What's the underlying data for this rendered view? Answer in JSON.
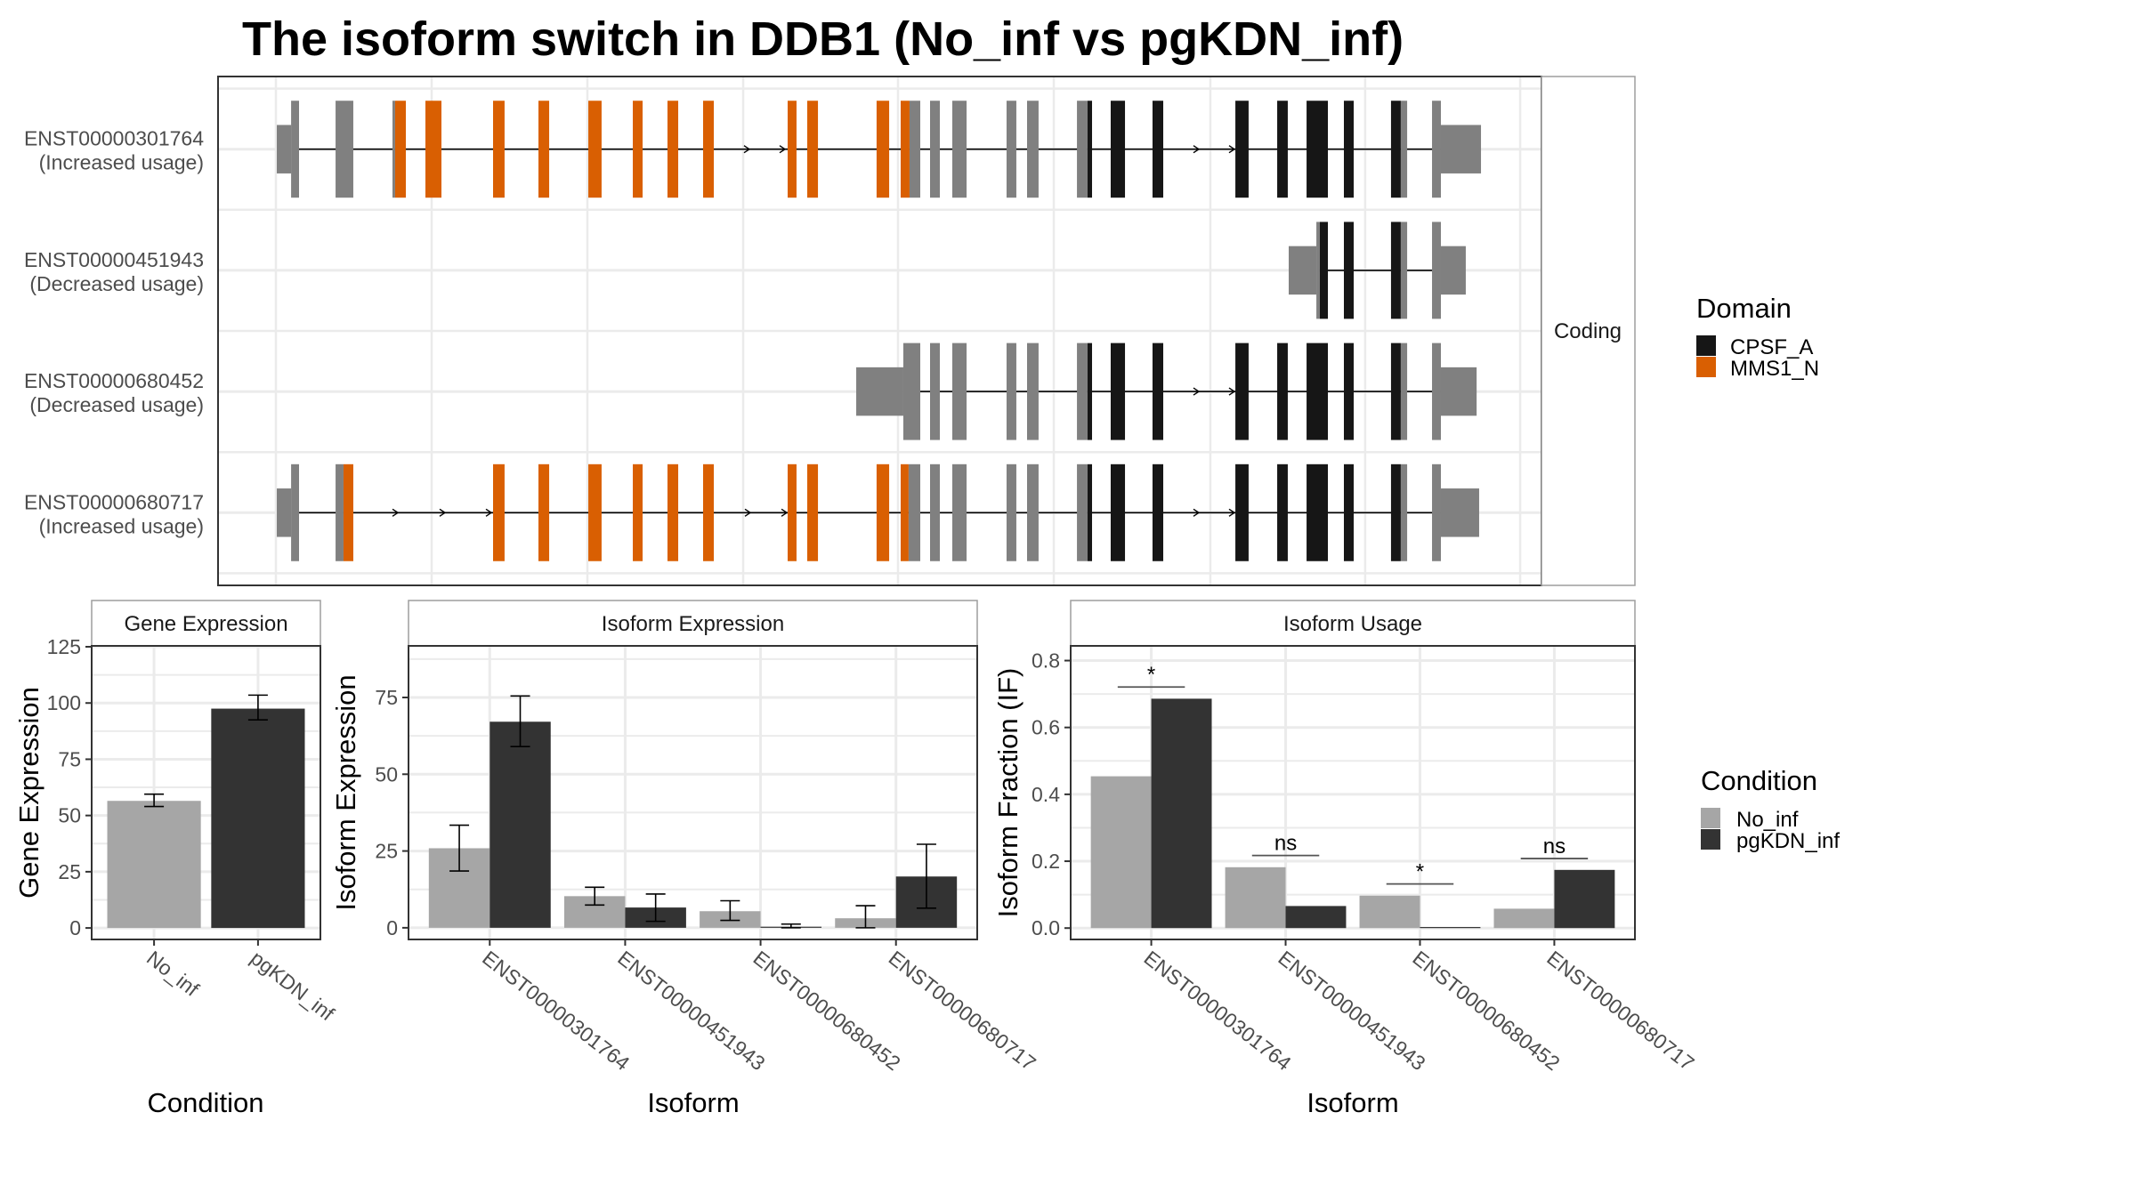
{
  "title": "The isoform switch in DDB1 (No_inf vs pgKDN_inf)",
  "colors": {
    "cpsf_a": "#161616",
    "mms1_n": "#D95F02",
    "non_domain_exon": "#808080",
    "no_inf": "#A6A6A6",
    "pgkdn_inf": "#333333",
    "gridline": "#EBEBEB",
    "panel_border": "#333333",
    "strip_border": "#9E9E9E"
  },
  "chart_data": [
    {
      "type": "gene-structure",
      "title": "The isoform switch in DDB1 (No_inf vs pgKDN_inf)",
      "facet_label": "Coding",
      "x_unit": "relative genomic position (0-1000)",
      "xlim": [
        0,
        1000
      ],
      "x_gridlines": [
        43.7,
        161.4,
        279.1,
        396.8,
        513.8,
        631.5,
        749.8,
        866.8,
        983.9
      ],
      "transcripts": [
        {
          "id": "ENST00000301764",
          "usage": "(Increased usage)",
          "intron": [
            61.2,
            924.0
          ],
          "arrows": [
            400.8,
            427.7,
            740.4,
            767.3
          ],
          "utrs": [
            [
              44.4,
              55.2
            ],
            [
              924.0,
              954.3
            ]
          ],
          "exons": [
            [
              55.2,
              61.2,
              "none"
            ],
            [
              88.8,
              102.2,
              "none"
            ],
            [
              131.8,
              133.8,
              "none"
            ],
            [
              133.8,
              141.9,
              "MMS1_N"
            ],
            [
              156.7,
              168.8,
              "MMS1_N"
            ],
            [
              207.8,
              216.5,
              "MMS1_N"
            ],
            [
              242.1,
              250.2,
              "MMS1_N"
            ],
            [
              279.8,
              289.8,
              "MMS1_N"
            ],
            [
              313.4,
              320.8,
              "MMS1_N"
            ],
            [
              339.6,
              347.7,
              "MMS1_N"
            ],
            [
              366.5,
              374.6,
              "MMS1_N"
            ],
            [
              430.4,
              437.1,
              "MMS1_N"
            ],
            [
              445.2,
              453.3,
              "MMS1_N"
            ],
            [
              497.6,
              507.1,
              "MMS1_N"
            ],
            [
              515.8,
              522.5,
              "MMS1_N"
            ],
            [
              522.5,
              530.6,
              "none"
            ],
            [
              538.0,
              545.4,
              "none"
            ],
            [
              554.8,
              565.6,
              "none"
            ],
            [
              595.8,
              603.2,
              "none"
            ],
            [
              611.3,
              620.0,
              "none"
            ],
            [
              649.0,
              657.0,
              "none"
            ],
            [
              657.0,
              660.4,
              "CPSF_A"
            ],
            [
              674.5,
              685.3,
              "CPSF_A"
            ],
            [
              706.1,
              714.2,
              "CPSF_A"
            ],
            [
              768.7,
              778.7,
              "CPSF_A"
            ],
            [
              800.3,
              808.3,
              "CPSF_A"
            ],
            [
              822.5,
              838.6,
              "CPSF_A"
            ],
            [
              850.7,
              858.1,
              "CPSF_A"
            ],
            [
              886.3,
              893.7,
              "CPSF_A"
            ],
            [
              893.7,
              898.5,
              "none"
            ],
            [
              917.3,
              924.0,
              "none"
            ]
          ]
        },
        {
          "id": "ENST00000451943",
          "usage": "(Decreased usage)",
          "intron": [
            832.5,
            917.3
          ],
          "arrows": [],
          "utrs": [
            [
              809.0,
              829.9
            ],
            [
              924.0,
              942.8
            ]
          ],
          "exons": [
            [
              829.9,
              832.5,
              "none"
            ],
            [
              832.5,
              838.6,
              "CPSF_A"
            ],
            [
              850.7,
              858.1,
              "CPSF_A"
            ],
            [
              886.3,
              893.7,
              "CPSF_A"
            ],
            [
              893.7,
              898.5,
              "none"
            ],
            [
              917.3,
              924.0,
              "none"
            ]
          ]
        },
        {
          "id": "ENST00000680452",
          "usage": "(Decreased usage)",
          "intron": [
            530.6,
            924.0
          ],
          "arrows": [
            740.4,
            767.3
          ],
          "utrs": [
            [
              482.2,
              517.8
            ],
            [
              924.0,
              951.0
            ]
          ],
          "exons": [
            [
              517.8,
              530.6,
              "none"
            ],
            [
              538.0,
              545.4,
              "none"
            ],
            [
              554.8,
              565.6,
              "none"
            ],
            [
              595.8,
              603.2,
              "none"
            ],
            [
              611.3,
              620.0,
              "none"
            ],
            [
              649.0,
              657.0,
              "none"
            ],
            [
              657.0,
              660.4,
              "CPSF_A"
            ],
            [
              674.5,
              685.3,
              "CPSF_A"
            ],
            [
              706.1,
              714.2,
              "CPSF_A"
            ],
            [
              768.7,
              778.7,
              "CPSF_A"
            ],
            [
              800.3,
              808.3,
              "CPSF_A"
            ],
            [
              822.5,
              838.6,
              "CPSF_A"
            ],
            [
              850.7,
              858.1,
              "CPSF_A"
            ],
            [
              886.3,
              893.7,
              "CPSF_A"
            ],
            [
              893.7,
              898.5,
              "none"
            ],
            [
              917.3,
              924.0,
              "none"
            ]
          ]
        },
        {
          "id": "ENST00000680717",
          "usage": "(Increased usage)",
          "intron": [
            61.2,
            924.0
          ],
          "arrows": [
            135.2,
            170.8,
            205.8,
            401.5,
            429.1,
            740.4,
            767.3
          ],
          "utrs": [
            [
              44.4,
              55.2
            ],
            [
              924.0,
              952.9
            ]
          ],
          "exons": [
            [
              55.2,
              61.2,
              "none"
            ],
            [
              88.8,
              94.8,
              "none"
            ],
            [
              94.8,
              102.2,
              "MMS1_N"
            ],
            [
              207.8,
              216.5,
              "MMS1_N"
            ],
            [
              242.1,
              250.2,
              "MMS1_N"
            ],
            [
              279.8,
              289.8,
              "MMS1_N"
            ],
            [
              313.4,
              320.8,
              "MMS1_N"
            ],
            [
              339.6,
              347.7,
              "MMS1_N"
            ],
            [
              366.5,
              374.6,
              "MMS1_N"
            ],
            [
              430.4,
              437.1,
              "MMS1_N"
            ],
            [
              445.2,
              453.3,
              "MMS1_N"
            ],
            [
              497.6,
              507.1,
              "MMS1_N"
            ],
            [
              515.8,
              521.8,
              "MMS1_N"
            ],
            [
              521.8,
              530.6,
              "none"
            ],
            [
              538.0,
              545.4,
              "none"
            ],
            [
              554.8,
              565.6,
              "none"
            ],
            [
              595.8,
              603.2,
              "none"
            ],
            [
              611.3,
              620.0,
              "none"
            ],
            [
              649.0,
              657.0,
              "none"
            ],
            [
              657.0,
              660.4,
              "CPSF_A"
            ],
            [
              674.5,
              685.3,
              "CPSF_A"
            ],
            [
              706.1,
              714.2,
              "CPSF_A"
            ],
            [
              768.7,
              778.7,
              "CPSF_A"
            ],
            [
              800.3,
              808.3,
              "CPSF_A"
            ],
            [
              822.5,
              838.6,
              "CPSF_A"
            ],
            [
              850.7,
              858.1,
              "CPSF_A"
            ],
            [
              886.3,
              893.7,
              "CPSF_A"
            ],
            [
              893.7,
              898.5,
              "none"
            ],
            [
              917.3,
              924.0,
              "none"
            ]
          ]
        }
      ],
      "legend": {
        "title": "Domain",
        "placement": "right",
        "entries": [
          {
            "label": "CPSF_A",
            "key": "CPSF_A"
          },
          {
            "label": "MMS1_N",
            "key": "MMS1_N"
          }
        ]
      }
    },
    {
      "type": "bar",
      "title": "Gene Expression",
      "xlabel": "Condition",
      "ylabel": "Gene Expression",
      "ylim": [
        -5.1,
        125.4
      ],
      "yticks": [
        0,
        25,
        50,
        75,
        100,
        125
      ],
      "categories": [
        "No_inf",
        "pgKDN_inf"
      ],
      "values": [
        56.5,
        97.5
      ],
      "error_low": [
        54.0,
        92.5
      ],
      "error_high": [
        59.5,
        103.5
      ]
    },
    {
      "type": "bar",
      "title": "Isoform Expression",
      "xlabel": "Isoform",
      "ylabel": "Isoform Expression",
      "ylim": [
        -3.8,
        91.8
      ],
      "yticks": [
        0,
        25,
        50,
        75
      ],
      "categories": [
        "ENST00000301764",
        "ENST00000451943",
        "ENST00000680452",
        "ENST00000680717"
      ],
      "series": [
        {
          "name": "No_inf",
          "values": [
            25.9,
            10.3,
            5.4,
            3.1
          ],
          "error_low": [
            18.5,
            7.4,
            2.4,
            0.0
          ],
          "error_high": [
            33.4,
            13.2,
            8.8,
            7.2
          ]
        },
        {
          "name": "pgKDN_inf",
          "values": [
            67.1,
            6.6,
            0.2,
            16.7
          ],
          "error_low": [
            59.0,
            2.1,
            0.0,
            6.4
          ],
          "error_high": [
            75.5,
            11.0,
            1.2,
            27.2
          ]
        }
      ]
    },
    {
      "type": "bar",
      "title": "Isoform Usage",
      "xlabel": "Isoform",
      "ylabel": "Isoform Fraction (IF)",
      "ylim": [
        -0.034,
        0.844
      ],
      "yticks": [
        0.0,
        0.2,
        0.4,
        0.6,
        0.8
      ],
      "ytick_labels": [
        "0.0",
        "0.2",
        "0.4",
        "0.6",
        "0.8"
      ],
      "categories": [
        "ENST00000301764",
        "ENST00000451943",
        "ENST00000680452",
        "ENST00000680717"
      ],
      "series": [
        {
          "name": "No_inf",
          "values": [
            0.454,
            0.182,
            0.097,
            0.058
          ]
        },
        {
          "name": "pgKDN_inf",
          "values": [
            0.686,
            0.066,
            0.001,
            0.174
          ]
        }
      ],
      "significance": [
        {
          "label": "*",
          "y": 0.721
        },
        {
          "label": "ns",
          "y": 0.217
        },
        {
          "label": "*",
          "y": 0.132
        },
        {
          "label": "ns",
          "y": 0.208
        }
      ]
    }
  ],
  "condition_legend": {
    "title": "Condition",
    "placement": "right",
    "entries": [
      {
        "label": "No_inf",
        "key": "no_inf"
      },
      {
        "label": "pgKDN_inf",
        "key": "pgkdn_inf"
      }
    ]
  }
}
